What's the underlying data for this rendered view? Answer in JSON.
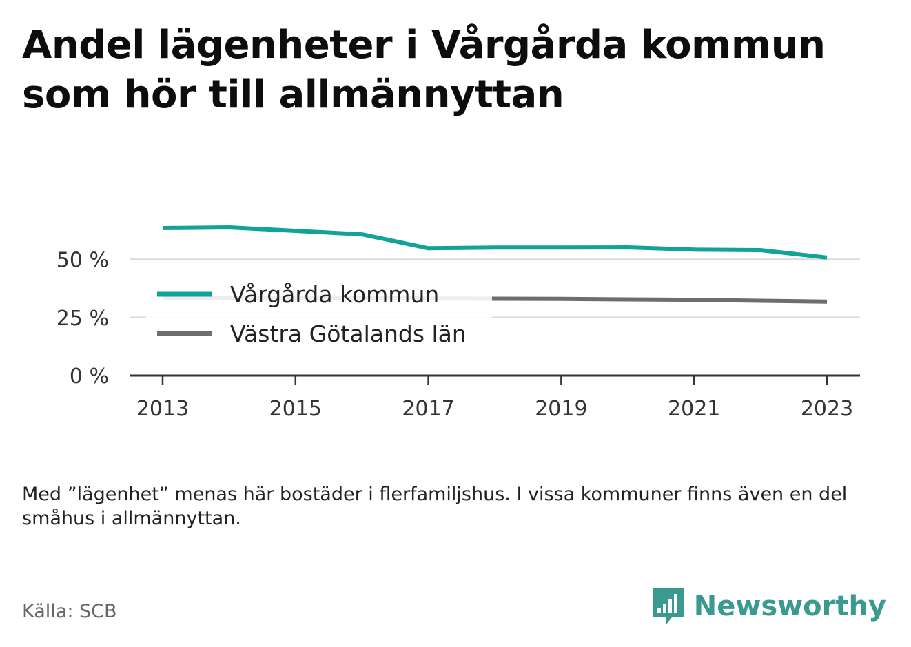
{
  "title": "Andel lägenheter i Vårgårda kommun som hör till allmännyttan",
  "note": "Med ”lägenhet” menas här bostäder i flerfamiljshus. I vissa kommuner finns även en del småhus i allmännyttan.",
  "source": "Källa: SCB",
  "brand": {
    "name": "Newsworthy",
    "icon": "newsworthy-logo-icon",
    "color": "#3a9a8f"
  },
  "chart_data": {
    "type": "line",
    "title": "Andel lägenheter i Vårgårda kommun som hör till allmännyttan",
    "xlabel": "",
    "ylabel": "",
    "x": [
      2013,
      2014,
      2015,
      2016,
      2017,
      2018,
      2019,
      2020,
      2021,
      2022,
      2023
    ],
    "x_ticks": [
      "2013",
      "2015",
      "2017",
      "2019",
      "2021",
      "2023"
    ],
    "y_ticks": [
      "0 %",
      "25 %",
      "50 %"
    ],
    "y_tick_values": [
      0,
      25,
      50
    ],
    "ylim": [
      0,
      70
    ],
    "grid": true,
    "legend_position": "left, inside plot",
    "series": [
      {
        "name": "Vårgårda kommun",
        "color": "#10a39a",
        "values": [
          63.5,
          63.8,
          62.3,
          60.8,
          54.8,
          55.1,
          55.1,
          55.2,
          54.2,
          54.0,
          50.8
        ]
      },
      {
        "name": "Västra Götalands län",
        "color": "#6d6d72",
        "values": [
          33.6,
          33.5,
          33.4,
          33.3,
          33.2,
          33.1,
          33.0,
          32.8,
          32.6,
          32.2,
          31.8
        ]
      }
    ]
  }
}
